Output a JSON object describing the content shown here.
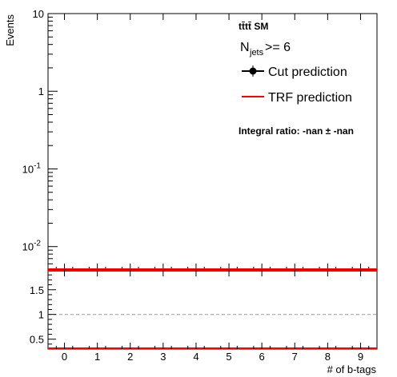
{
  "chart_data": [
    {
      "type": "line",
      "ylabel": "Events",
      "yscale": "log",
      "ylim": [
        0.005,
        10
      ],
      "xlim": [
        -0.5,
        9.5
      ],
      "yticks": [
        {
          "value": 10,
          "base": "10",
          "exp": ""
        },
        {
          "value": 1,
          "base": "1",
          "exp": ""
        },
        {
          "value": 0.1,
          "base": "10",
          "exp": "-1"
        },
        {
          "value": 0.01,
          "base": "10",
          "exp": "-2"
        }
      ],
      "annotations": {
        "process": "tt̄tt̄ SM",
        "njets_main": "N",
        "njets_sub": "jets",
        "njets_rest": " >= 6",
        "integral_ratio": "Integral ratio: -nan ± -nan"
      },
      "legend": {
        "placement": "top-right",
        "entries": [
          {
            "label": "Cut prediction",
            "color": "#000000",
            "marker": "circle"
          },
          {
            "label": "TRF prediction",
            "color": "#ff0000",
            "marker": "line"
          }
        ]
      },
      "series": [
        {
          "name": "Cut prediction",
          "color": "#000000",
          "x": [],
          "y": []
        },
        {
          "name": "TRF prediction",
          "color": "#ff0000",
          "x": [],
          "y": []
        }
      ]
    },
    {
      "type": "line",
      "xlabel": "# of b-tags",
      "xlim": [
        -0.5,
        9.5
      ],
      "ylim": [
        0.3,
        1.9
      ],
      "xticks": [
        "0",
        "1",
        "2",
        "3",
        "4",
        "5",
        "6",
        "7",
        "8",
        "9"
      ],
      "yticks": [
        "0.5",
        "1",
        "1.5"
      ],
      "reference_line": 1,
      "series": []
    }
  ],
  "colors": {
    "trf_line": "#ff0000",
    "reference_line": "#999999"
  }
}
